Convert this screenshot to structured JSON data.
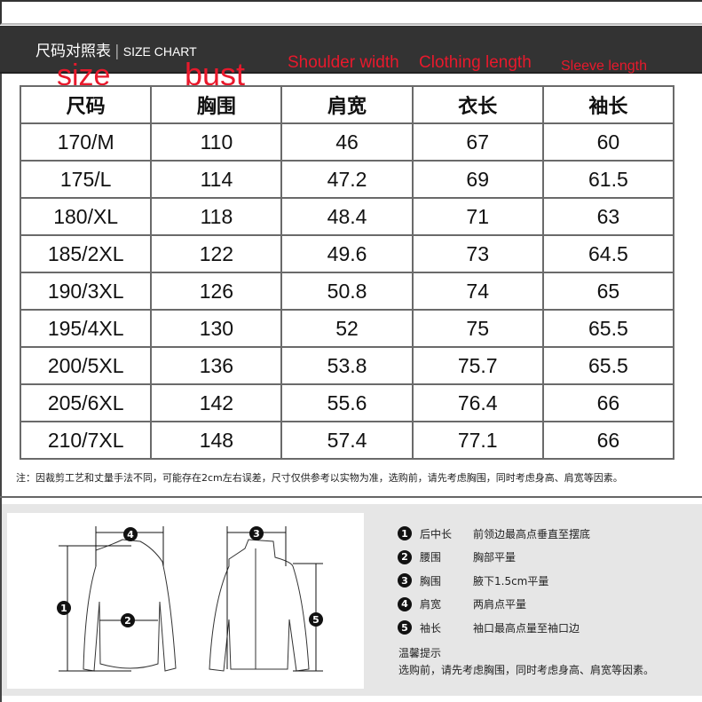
{
  "header": {
    "title_cn": "尺码对照表",
    "separator": "|",
    "title_en": "SIZE CHART"
  },
  "annotations": {
    "size": "size",
    "bust": "bust",
    "shoulder": "Shoulder width",
    "clothing": "Clothing length",
    "sleeve": "Sleeve length"
  },
  "table": {
    "headers": [
      "尺码",
      "胸围",
      "肩宽",
      "衣长",
      "袖长"
    ],
    "rows": [
      [
        "170/M",
        "110",
        "46",
        "67",
        "60"
      ],
      [
        "175/L",
        "114",
        "47.2",
        "69",
        "61.5"
      ],
      [
        "180/XL",
        "118",
        "48.4",
        "71",
        "63"
      ],
      [
        "185/2XL",
        "122",
        "49.6",
        "73",
        "64.5"
      ],
      [
        "190/3XL",
        "126",
        "50.8",
        "74",
        "65"
      ],
      [
        "195/4XL",
        "130",
        "52",
        "75",
        "65.5"
      ],
      [
        "200/5XL",
        "136",
        "53.8",
        "75.7",
        "65.5"
      ],
      [
        "205/6XL",
        "142",
        "55.6",
        "76.4",
        "66"
      ],
      [
        "210/7XL",
        "148",
        "57.4",
        "77.1",
        "66"
      ]
    ]
  },
  "note": "注：因裁剪工艺和丈量手法不同，可能存在2cm左右误差，尺寸仅供参考以实物为准，选购前，请先考虑胸围，同时考虑身高、肩宽等因素。",
  "legend": [
    {
      "n": "1",
      "name": "后中长",
      "desc": "前领边最高点垂直至摆底"
    },
    {
      "n": "2",
      "name": "腰围",
      "desc": "胸部平量"
    },
    {
      "n": "3",
      "name": "胸围",
      "desc": "腋下1.5cm平量"
    },
    {
      "n": "4",
      "name": "肩宽",
      "desc": "两肩点平量"
    },
    {
      "n": "5",
      "name": "袖长",
      "desc": "袖口最高点量至袖口边"
    }
  ],
  "tip": {
    "title": "温馨提示",
    "text": "选购前，请先考虑胸围，同时考虑身高、肩宽等因素。"
  },
  "diagram_markers": [
    "1",
    "2",
    "3",
    "4",
    "5"
  ]
}
